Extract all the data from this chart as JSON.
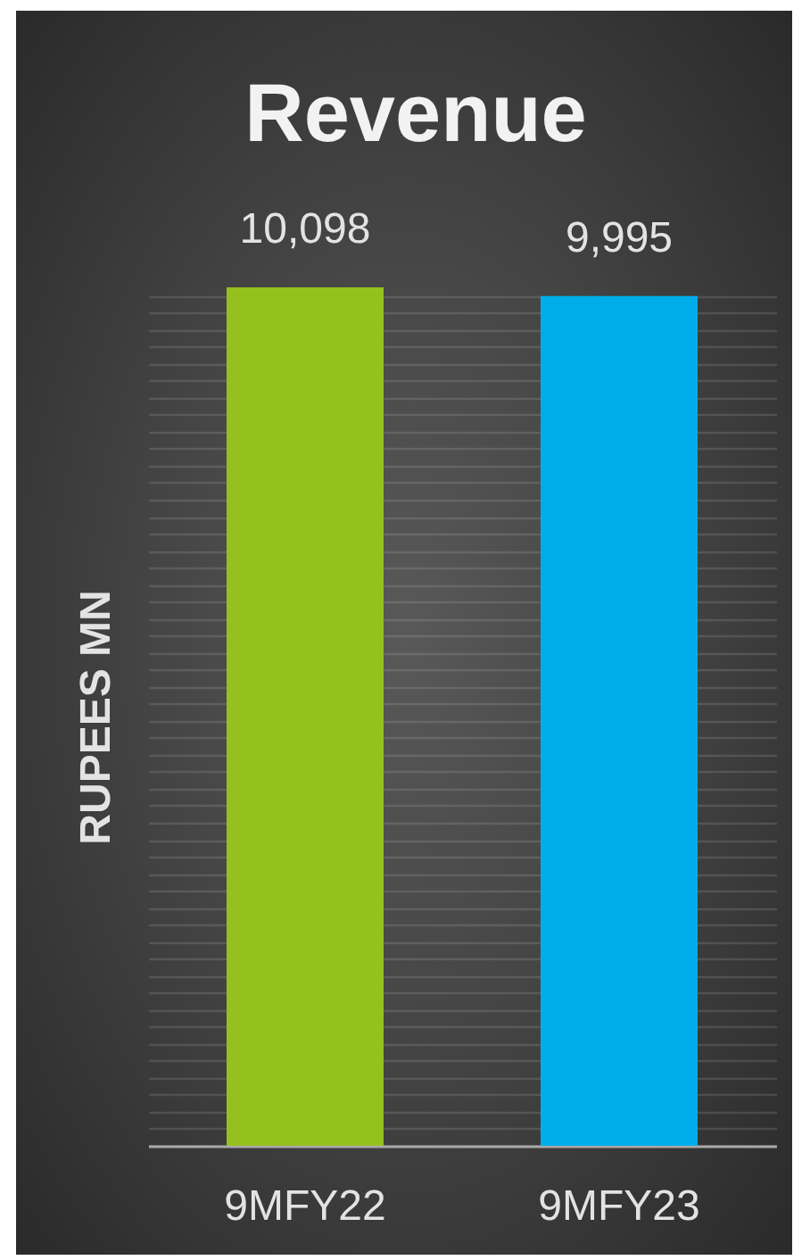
{
  "chart_data": {
    "type": "bar",
    "title": "Revenue",
    "ylabel": "RUPEES MN",
    "categories": [
      "9MFY22",
      "9MFY23"
    ],
    "values": [
      10098,
      9995
    ],
    "colors": [
      "#95c11f",
      "#00adeb"
    ],
    "value_labels": [
      "10,098",
      "9,995"
    ],
    "grid": "y",
    "tick_labels": "x"
  }
}
